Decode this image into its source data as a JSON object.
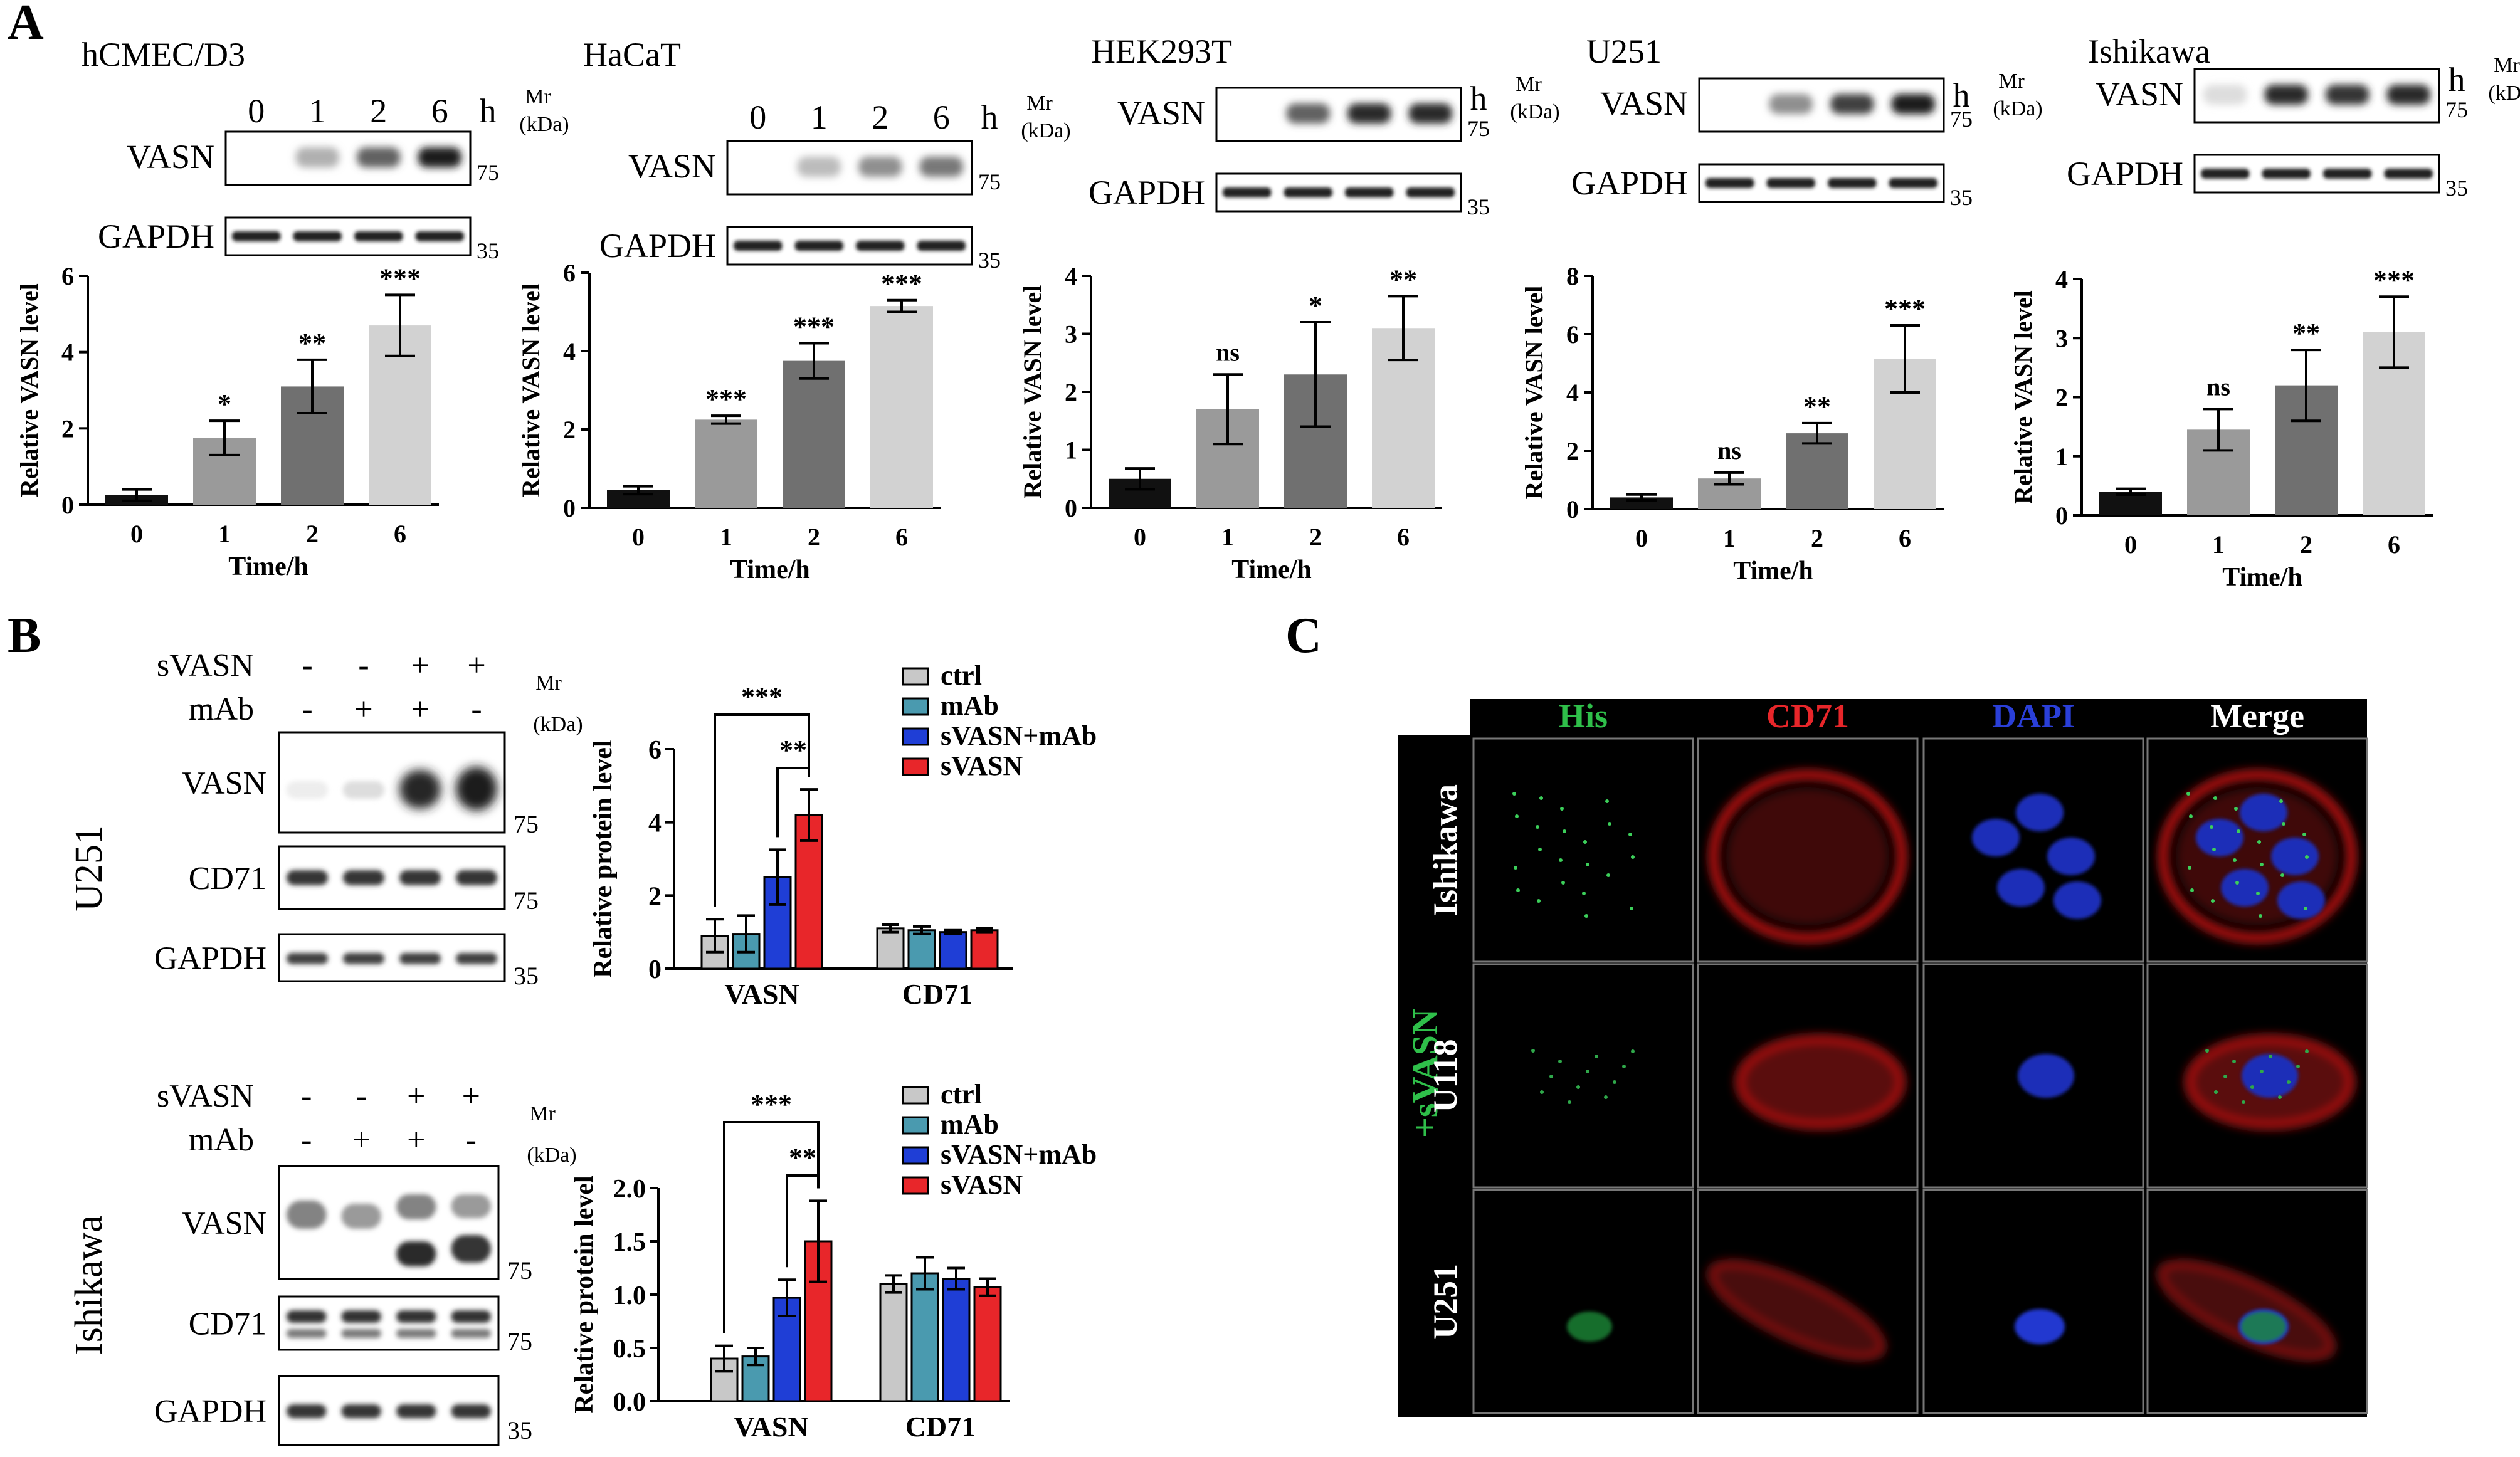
{
  "panel_labels": {
    "a": "A",
    "b": "B",
    "c": "C"
  },
  "panel_a": {
    "time_labels": [
      "0",
      "1",
      "2",
      "6",
      "h"
    ],
    "mr_label": "Mr",
    "kda_label": "(kDa)",
    "protein_vasn": "VASN",
    "protein_gapdh": "GAPDH",
    "y_label": "Relative VASN level",
    "x_label": "Time/h"
  },
  "panel_b": {
    "row_svasn": "sVASN",
    "row_mab": "mAb",
    "mr_label": "Mr",
    "kda_label": "(kDa)",
    "y_label": "Relative protein level",
    "legend": [
      "ctrl",
      "mAb",
      "sVASN+mAb",
      "sVASN"
    ],
    "colors": [
      "#c8c8c8",
      "#4a9aaf",
      "#1f3ed6",
      "#e8262a"
    ],
    "groups": [
      "VASN",
      "CD71"
    ],
    "sig_a": "***",
    "sig_b": "**",
    "u251": {
      "cell": "U251",
      "svasn_signs": [
        "-",
        "-",
        "+",
        "+"
      ],
      "mab_signs": [
        "-",
        "+",
        "+",
        "-"
      ],
      "bands": [
        {
          "name": "VASN",
          "mw": "75"
        },
        {
          "name": "CD71",
          "mw": "75"
        },
        {
          "name": "GAPDH",
          "mw": "35"
        }
      ]
    },
    "ishikawa": {
      "cell": "Ishikawa",
      "svasn_signs": [
        "-",
        "-",
        "+",
        "+"
      ],
      "mab_signs": [
        "-",
        "+",
        "+",
        "-"
      ],
      "bands": [
        {
          "name": "VASN",
          "mw": "75"
        },
        {
          "name": "CD71",
          "mw": "75"
        },
        {
          "name": "GAPDH",
          "mw": "35"
        }
      ]
    }
  },
  "panel_c": {
    "columns": [
      "His",
      "CD71",
      "DAPI",
      "Merge"
    ],
    "column_colors": [
      "#2fbf4a",
      "#e8262a",
      "#2a3fd8",
      "#ffffff"
    ],
    "rows": [
      "Ishikawa",
      "U118",
      "U251"
    ],
    "side_label": "+sVASN"
  },
  "chart_data": [
    {
      "type": "bar",
      "title": "hCMEC/D3",
      "categories": [
        "0",
        "1",
        "2",
        "6"
      ],
      "values": [
        0.25,
        1.75,
        3.1,
        4.7
      ],
      "errors": [
        0.15,
        0.45,
        0.7,
        0.8
      ],
      "significance": [
        "",
        "*",
        "**",
        "***"
      ],
      "colors": [
        "#111111",
        "#9a9a9a",
        "#707070",
        "#d2d2d2"
      ],
      "ylim": [
        0,
        6
      ],
      "ticks": [
        "0",
        "2",
        "4",
        "6"
      ],
      "xlabel": "Time/h",
      "ylabel": "Relative VASN level",
      "blot": {
        "vasn_mw": "75",
        "gapdh_mw": "35",
        "vasn_intensity": [
          0,
          0.35,
          0.7,
          1
        ]
      }
    },
    {
      "type": "bar",
      "title": "HaCaT",
      "categories": [
        "0",
        "1",
        "2",
        "6"
      ],
      "values": [
        0.45,
        2.25,
        3.75,
        5.15
      ],
      "errors": [
        0.1,
        0.1,
        0.45,
        0.15
      ],
      "significance": [
        "",
        "***",
        "***",
        "***"
      ],
      "colors": [
        "#111111",
        "#9a9a9a",
        "#707070",
        "#d2d2d2"
      ],
      "ylim": [
        0,
        6
      ],
      "ticks": [
        "0",
        "2",
        "4",
        "6"
      ],
      "xlabel": "Time/h",
      "ylabel": "Relative VASN level",
      "blot": {
        "vasn_mw": "75",
        "gapdh_mw": "35",
        "vasn_intensity": [
          0,
          0.3,
          0.5,
          0.6
        ]
      }
    },
    {
      "type": "bar",
      "title": "HEK293T",
      "categories": [
        "0",
        "1",
        "2",
        "6"
      ],
      "values": [
        0.5,
        1.7,
        2.3,
        3.1
      ],
      "errors": [
        0.18,
        0.6,
        0.9,
        0.55
      ],
      "significance": [
        "",
        "ns",
        "*",
        "**"
      ],
      "colors": [
        "#111111",
        "#9a9a9a",
        "#707070",
        "#d2d2d2"
      ],
      "ylim": [
        0,
        4
      ],
      "ticks": [
        "0",
        "1",
        "2",
        "3",
        "4"
      ],
      "xlabel": "Time/h",
      "ylabel": "Relative VASN level",
      "blot": {
        "vasn_mw": "75",
        "gapdh_mw": "35",
        "vasn_intensity": [
          0,
          0.7,
          0.95,
          0.95
        ]
      }
    },
    {
      "type": "bar",
      "title": "U251",
      "categories": [
        "0",
        "1",
        "2",
        "6"
      ],
      "values": [
        0.4,
        1.05,
        2.6,
        5.15
      ],
      "errors": [
        0.1,
        0.2,
        0.35,
        1.15
      ],
      "significance": [
        "",
        "ns",
        "**",
        "***"
      ],
      "colors": [
        "#111111",
        "#9a9a9a",
        "#707070",
        "#d2d2d2"
      ],
      "ylim": [
        0,
        8
      ],
      "ticks": [
        "0",
        "2",
        "4",
        "6",
        "8"
      ],
      "xlabel": "Time/h",
      "ylabel": "Relative VASN level",
      "blot": {
        "vasn_mw": "75",
        "gapdh_mw": "35",
        "vasn_intensity": [
          0,
          0.5,
          0.85,
          1
        ]
      }
    },
    {
      "type": "bar",
      "title": "Ishikawa",
      "categories": [
        "0",
        "1",
        "2",
        "6"
      ],
      "values": [
        0.4,
        1.45,
        2.2,
        3.1
      ],
      "errors": [
        0.05,
        0.35,
        0.6,
        0.6
      ],
      "significance": [
        "",
        "ns",
        "**",
        "***"
      ],
      "colors": [
        "#111111",
        "#9a9a9a",
        "#707070",
        "#d2d2d2"
      ],
      "ylim": [
        0,
        4
      ],
      "ticks": [
        "0",
        "1",
        "2",
        "3",
        "4"
      ],
      "xlabel": "Time/h",
      "ylabel": "Relative VASN level",
      "blot": {
        "vasn_mw": "75",
        "gapdh_mw": "35",
        "vasn_intensity": [
          0.15,
          0.95,
          0.9,
          0.95
        ]
      }
    },
    {
      "type": "bar",
      "title": "U251 sVASN",
      "groups": [
        "VASN",
        "CD71"
      ],
      "series": [
        {
          "name": "ctrl",
          "values": [
            0.9,
            1.1
          ],
          "errors": [
            0.45,
            0.1
          ]
        },
        {
          "name": "mAb",
          "values": [
            0.95,
            1.05
          ],
          "errors": [
            0.5,
            0.1
          ]
        },
        {
          "name": "sVASN+mAb",
          "values": [
            2.5,
            1.0
          ],
          "errors": [
            0.75,
            0.05
          ]
        },
        {
          "name": "sVASN",
          "values": [
            4.2,
            1.05
          ],
          "errors": [
            0.7,
            0.05
          ]
        }
      ],
      "ylim": [
        0,
        6
      ],
      "ticks": [
        "0",
        "2",
        "4",
        "6"
      ],
      "ylabel": "Relative protein level"
    },
    {
      "type": "bar",
      "title": "Ishikawa sVASN",
      "groups": [
        "VASN",
        "CD71"
      ],
      "series": [
        {
          "name": "ctrl",
          "values": [
            0.4,
            1.1
          ],
          "errors": [
            0.12,
            0.08
          ]
        },
        {
          "name": "mAb",
          "values": [
            0.42,
            1.2
          ],
          "errors": [
            0.08,
            0.15
          ]
        },
        {
          "name": "sVASN+mAb",
          "values": [
            0.97,
            1.15
          ],
          "errors": [
            0.17,
            0.1
          ]
        },
        {
          "name": "sVASN",
          "values": [
            1.5,
            1.07
          ],
          "errors": [
            0.38,
            0.08
          ]
        }
      ],
      "ylim": [
        0,
        2.0
      ],
      "ticks": [
        "0.0",
        "0.5",
        "1.0",
        "1.5",
        "2.0"
      ],
      "ylabel": "Relative protein level"
    }
  ]
}
